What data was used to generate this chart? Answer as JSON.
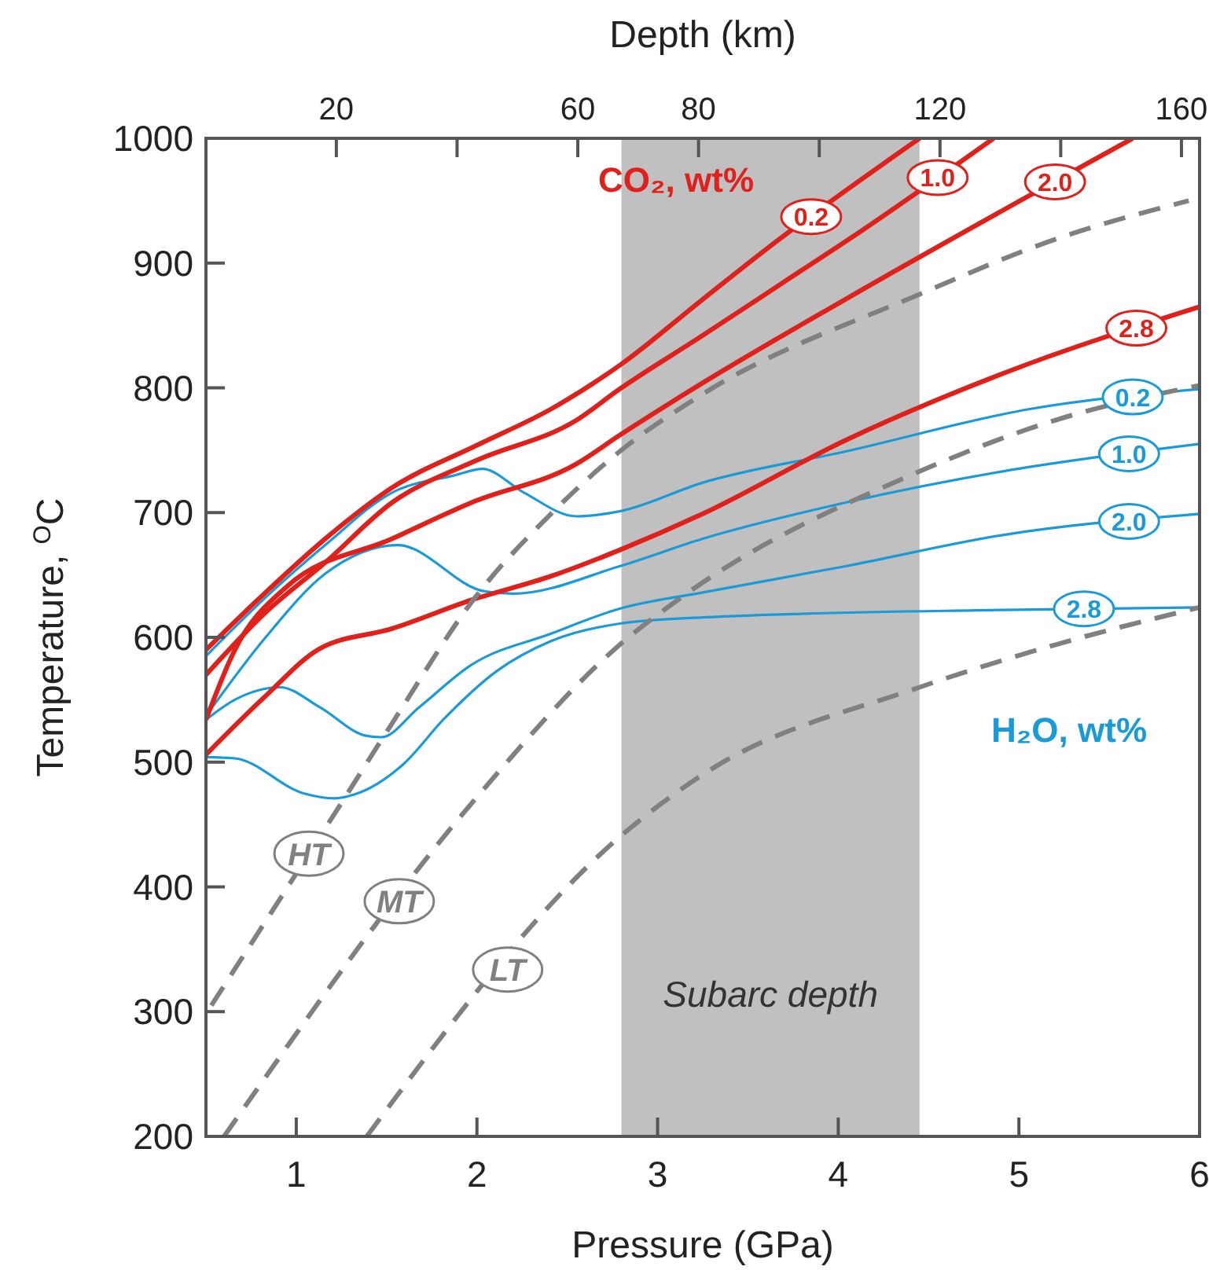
{
  "chart_data": {
    "type": "line",
    "xlabel": "Pressure (GPa)",
    "ylabel": "Temperature, $^{O}$C",
    "x2label": "Depth (km)",
    "xlim": [
      0.5,
      6
    ],
    "xticks": [
      1,
      2,
      3,
      4,
      5,
      6
    ],
    "ylim": [
      200,
      1000
    ],
    "yticks": [
      200,
      300,
      400,
      500,
      600,
      700,
      800,
      900,
      1000
    ],
    "x2lim": [
      -1.6,
      163
    ],
    "x2ticks": [
      20,
      {
        "value": 40,
        "label": null
      },
      60,
      80,
      {
        "value": 100,
        "label": null
      },
      120,
      {
        "value": 140,
        "label": null
      },
      160
    ],
    "bands": [
      {
        "axis": "x",
        "from": 2.8,
        "to": 4.45,
        "label": "Subarc depth",
        "color": "#c0c0c0"
      }
    ],
    "annotations": [
      "CO₂, wt%",
      "H₂O, wt%"
    ],
    "series": [
      {
        "name": "0.2",
        "color": "#1a9ad6",
        "line_style": "solid",
        "x": [
          0.5,
          0.83,
          1.16,
          1.53,
          1.88,
          2.03,
          2.26,
          2.55,
          2.79,
          3.25,
          4.04,
          5.06,
          6.0
        ],
        "values": [
          585,
          632,
          674,
          716,
          730,
          735,
          716,
          697,
          701,
          724,
          749,
          783,
          799
        ]
      },
      {
        "name": "1.0",
        "color": "#1a9ad6",
        "line_style": "solid",
        "x": [
          0.5,
          0.83,
          1.16,
          1.56,
          2.04,
          2.2,
          2.79,
          3.25,
          4.04,
          4.91,
          6.0
        ],
        "values": [
          537,
          600,
          651,
          674,
          637,
          635,
          657,
          679,
          708,
          733,
          755
        ]
      },
      {
        "name": "2.0",
        "color": "#1a9ad6",
        "line_style": "solid",
        "x": [
          0.5,
          0.66,
          0.91,
          1.13,
          1.39,
          1.47,
          1.68,
          1.97,
          2.41,
          2.79,
          3.25,
          4.04,
          4.91,
          6.0
        ],
        "values": [
          534,
          550,
          560,
          544,
          521,
          520,
          544,
          578,
          603,
          623,
          636,
          657,
          682,
          699
        ]
      },
      {
        "name": "2.8",
        "color": "#1a9ad6",
        "line_style": "solid",
        "x": [
          0.5,
          0.66,
          1.04,
          1.21,
          1.32,
          1.59,
          1.82,
          2.11,
          2.41,
          2.79,
          3.25,
          4.91,
          6.0
        ],
        "values": [
          504,
          503,
          475,
          471,
          474,
          498,
          535,
          573,
          597,
          611,
          616,
          622,
          624
        ]
      },
      {
        "name": "0.2",
        "color": "#e0201b",
        "line_style": "solid",
        "x": [
          0.5,
          0.83,
          1.16,
          1.53,
          2.0,
          2.41,
          2.79,
          3.25,
          3.6,
          4.45
        ],
        "values": [
          590,
          636,
          679,
          720,
          754,
          783,
          818,
          871,
          911,
          1000
        ]
      },
      {
        "name": "1.0",
        "color": "#e0201b",
        "line_style": "solid",
        "x": [
          0.5,
          0.83,
          1.16,
          1.53,
          2.0,
          2.55,
          2.79,
          3.25,
          3.69,
          4.13,
          4.86
        ],
        "values": [
          570,
          620,
          660,
          708,
          742,
          774,
          799,
          842,
          884,
          926,
          1000
        ]
      },
      {
        "name": "2.0",
        "color": "#e0201b",
        "line_style": "solid",
        "x": [
          0.5,
          0.66,
          0.95,
          1.53,
          1.97,
          2.55,
          2.79,
          3.25,
          4.04,
          5.63
        ],
        "values": [
          534,
          590,
          641,
          679,
          708,
          739,
          762,
          804,
          871,
          1000
        ]
      },
      {
        "name": "2.8",
        "color": "#e0201b",
        "line_style": "solid",
        "x": [
          0.5,
          0.83,
          1.13,
          1.53,
          1.97,
          2.41,
          2.79,
          3.25,
          4.04,
          4.92,
          6.0
        ],
        "values": [
          506,
          553,
          591,
          607,
          630,
          649,
          670,
          699,
          758,
          812,
          865
        ]
      },
      {
        "name": "HT",
        "color": "#808080",
        "line_style": "dashed",
        "x": [
          0.53,
          1.24,
          1.53,
          1.99,
          2.41,
          2.79,
          3.25,
          4.45,
          5.2,
          5.94
        ],
        "values": [
          305,
          465,
          531,
          632,
          699,
          749,
          795,
          875,
          919,
          950
        ]
      },
      {
        "name": "MT",
        "color": "#808080",
        "line_style": "dashed",
        "x": [
          0.6,
          2.0,
          2.79,
          3.17,
          4.45,
          5.2,
          6.0
        ],
        "values": [
          200,
          472,
          594,
          636,
          733,
          774,
          802
        ]
      },
      {
        "name": "LT",
        "color": "#808080",
        "line_style": "dashed",
        "x": [
          1.39,
          2.79,
          3.25,
          4.45,
          5.2,
          6.0
        ],
        "values": [
          200,
          440,
          490,
          560,
          594,
          624
        ]
      }
    ]
  }
}
